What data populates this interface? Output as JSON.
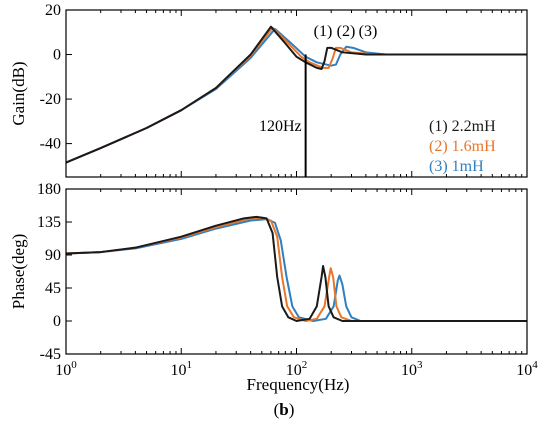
{
  "figure": {
    "caption_open": "(",
    "caption_bold": "b",
    "caption_close": ")"
  },
  "chart_data": [
    {
      "type": "line",
      "panel": "gain",
      "xlabel": "",
      "ylabel": "Gain(dB)",
      "x_scale": "log",
      "xlim": [
        1,
        10000
      ],
      "ylim": [
        -55,
        20
      ],
      "yticks": [
        20,
        0,
        -20,
        -40
      ],
      "grid": false,
      "legend": "bottom-right",
      "legend_entries": [
        {
          "text": "(1) 2.2mH",
          "color": "#1a1a1a"
        },
        {
          "text": "(2) 1.6mH",
          "color": "#e8762b"
        },
        {
          "text": "(3) 1mH",
          "color": "#2f7fc1"
        }
      ],
      "annotations": [
        {
          "text": "120Hz",
          "x": 120,
          "y_from": 0,
          "y_to": -55
        },
        {
          "text": "(1)",
          "x": 180,
          "y": 5
        },
        {
          "text": "(2)",
          "x": 205,
          "y": 5
        },
        {
          "text": "(3)",
          "x": 235,
          "y": 5
        }
      ],
      "series": [
        {
          "name": "(1) 2.2mH",
          "color": "#1a1a1a",
          "values": [
            [
              1,
              -48.5
            ],
            [
              2,
              -42
            ],
            [
              5,
              -33
            ],
            [
              10,
              -25
            ],
            [
              20,
              -15
            ],
            [
              40,
              0
            ],
            [
              60,
              12.5
            ],
            [
              80,
              5
            ],
            [
              100,
              -1
            ],
            [
              120,
              -3.5
            ],
            [
              150,
              -6
            ],
            [
              165,
              -6.5
            ],
            [
              175,
              -3
            ],
            [
              185,
              3
            ],
            [
              200,
              3
            ],
            [
              250,
              1
            ],
            [
              400,
              0
            ],
            [
              1000,
              0
            ],
            [
              10000,
              0
            ]
          ]
        },
        {
          "name": "(2) 1.6mH",
          "color": "#e8762b",
          "values": [
            [
              1,
              -48.5
            ],
            [
              2,
              -42
            ],
            [
              5,
              -33
            ],
            [
              10,
              -25
            ],
            [
              20,
              -15
            ],
            [
              40,
              -0.5
            ],
            [
              62,
              12
            ],
            [
              85,
              5
            ],
            [
              110,
              -1
            ],
            [
              130,
              -3.5
            ],
            [
              170,
              -6
            ],
            [
              190,
              -6
            ],
            [
              205,
              -2
            ],
            [
              220,
              3
            ],
            [
              240,
              3
            ],
            [
              300,
              1
            ],
            [
              500,
              0
            ],
            [
              1000,
              0
            ],
            [
              10000,
              0
            ]
          ]
        },
        {
          "name": "(3) 1mH",
          "color": "#2f7fc1",
          "values": [
            [
              1,
              -48.5
            ],
            [
              2,
              -42
            ],
            [
              5,
              -33
            ],
            [
              10,
              -25
            ],
            [
              20,
              -15.5
            ],
            [
              40,
              -1.5
            ],
            [
              65,
              11.5
            ],
            [
              90,
              5
            ],
            [
              120,
              -1
            ],
            [
              150,
              -3.5
            ],
            [
              200,
              -5
            ],
            [
              220,
              -4.5
            ],
            [
              240,
              0
            ],
            [
              270,
              3.5
            ],
            [
              310,
              3
            ],
            [
              400,
              1
            ],
            [
              600,
              0
            ],
            [
              1000,
              0
            ],
            [
              10000,
              0
            ]
          ]
        }
      ]
    },
    {
      "type": "line",
      "panel": "phase",
      "xlabel": "Frequency(Hz)",
      "ylabel": "Phase(deg)",
      "x_scale": "log",
      "xlim": [
        1,
        10000
      ],
      "ylim": [
        -45,
        180
      ],
      "xticks": [
        1,
        10,
        100,
        1000,
        10000
      ],
      "xtick_base": "10",
      "xtick_exponents": [
        "0",
        "1",
        "2",
        "3",
        "4"
      ],
      "yticks": [
        180,
        135,
        90,
        45,
        0,
        -45
      ],
      "grid": false,
      "series": [
        {
          "name": "(1) 2.2mH",
          "color": "#1a1a1a",
          "values": [
            [
              1,
              92
            ],
            [
              2,
              94
            ],
            [
              4,
              100
            ],
            [
              10,
              115
            ],
            [
              20,
              130
            ],
            [
              35,
              140
            ],
            [
              45,
              142
            ],
            [
              55,
              140
            ],
            [
              62,
              120
            ],
            [
              68,
              60
            ],
            [
              75,
              20
            ],
            [
              85,
              5
            ],
            [
              100,
              0
            ],
            [
              130,
              3
            ],
            [
              150,
              20
            ],
            [
              165,
              60
            ],
            [
              170,
              75
            ],
            [
              178,
              60
            ],
            [
              190,
              20
            ],
            [
              210,
              5
            ],
            [
              250,
              0
            ],
            [
              10000,
              0
            ]
          ]
        },
        {
          "name": "(2) 1.6mH",
          "color": "#e8762b",
          "values": [
            [
              1,
              92
            ],
            [
              2,
              94
            ],
            [
              4,
              100
            ],
            [
              10,
              114
            ],
            [
              20,
              128
            ],
            [
              38,
              139
            ],
            [
              50,
              141
            ],
            [
              60,
              137
            ],
            [
              68,
              115
            ],
            [
              75,
              60
            ],
            [
              83,
              20
            ],
            [
              95,
              5
            ],
            [
              120,
              0
            ],
            [
              150,
              3
            ],
            [
              175,
              20
            ],
            [
              192,
              60
            ],
            [
              198,
              72
            ],
            [
              208,
              60
            ],
            [
              222,
              20
            ],
            [
              245,
              5
            ],
            [
              300,
              0
            ],
            [
              10000,
              0
            ]
          ]
        },
        {
          "name": "(3) 1mH",
          "color": "#2f7fc1",
          "values": [
            [
              1,
              92
            ],
            [
              2,
              94
            ],
            [
              4,
              99
            ],
            [
              10,
              112
            ],
            [
              20,
              126
            ],
            [
              40,
              137
            ],
            [
              55,
              139
            ],
            [
              65,
              134
            ],
            [
              73,
              110
            ],
            [
              82,
              60
            ],
            [
              92,
              20
            ],
            [
              105,
              5
            ],
            [
              140,
              0
            ],
            [
              180,
              3
            ],
            [
              210,
              20
            ],
            [
              228,
              55
            ],
            [
              236,
              62
            ],
            [
              250,
              50
            ],
            [
              270,
              20
            ],
            [
              300,
              5
            ],
            [
              360,
              0
            ],
            [
              10000,
              0
            ]
          ]
        }
      ]
    }
  ]
}
